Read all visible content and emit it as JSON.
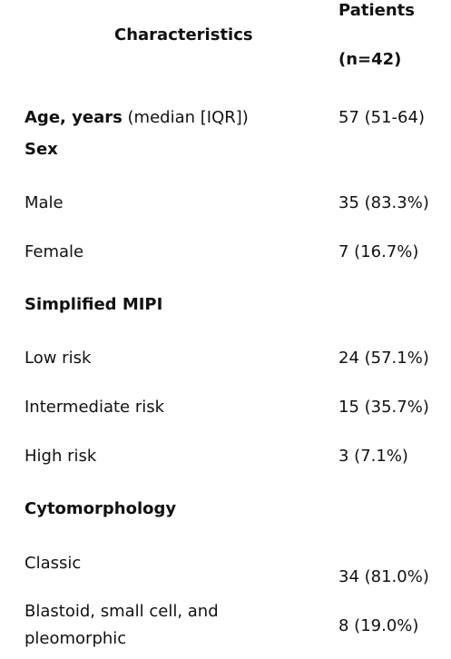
{
  "header": {
    "characteristics": "Characteristics",
    "patients_line1": "Patients",
    "patients_line2": "(n=42)"
  },
  "rows": {
    "age": {
      "label_bold": "Age, years",
      "label_rest": " (median [IQR])",
      "value": "57 (51-64)"
    },
    "sex_heading": "Sex",
    "male": {
      "label": "Male",
      "value": "35 (83.3%)"
    },
    "female": {
      "label": "Female",
      "value": "7 (16.7%)"
    },
    "mipi_heading": "Simplified MIPI",
    "low": {
      "label": "Low risk",
      "value": "24 (57.1%)"
    },
    "intermediate": {
      "label": "Intermediate risk",
      "value": "15 (35.7%)"
    },
    "high": {
      "label": "High risk",
      "value": "3 (7.1%)"
    },
    "cyto_heading": "Cytomorphology",
    "classic": {
      "label": "Classic",
      "value": "34 (81.0%)"
    },
    "blastoid": {
      "label": "Blastoid, small cell, and pleomorphic",
      "value": "8 (19.0%)"
    }
  }
}
